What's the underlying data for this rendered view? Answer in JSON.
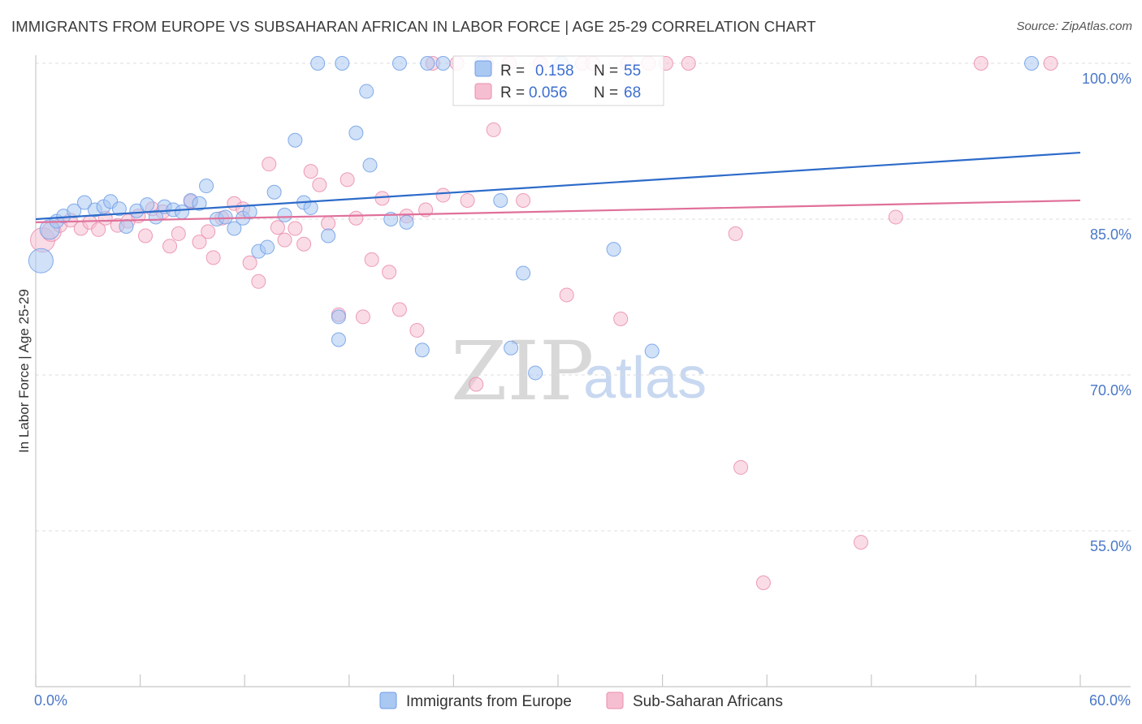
{
  "title": "IMMIGRANTS FROM EUROPE VS SUBSAHARAN AFRICAN IN LABOR FORCE | AGE 25-29 CORRELATION CHART",
  "source": "Source: ZipAtlas.com",
  "watermark": {
    "zip": "ZIP",
    "atlas": "atlas"
  },
  "chart_data": {
    "type": "scatter",
    "title": "IMMIGRANTS FROM EUROPE VS SUBSAHARAN AFRICAN IN LABOR FORCE | AGE 25-29 CORRELATION CHART",
    "xlabel": "",
    "ylabel": "In Labor Force | Age 25-29",
    "xlim": [
      0,
      60
    ],
    "ylim": [
      40,
      102
    ],
    "x_tick_labels": [
      "0.0%",
      "60.0%"
    ],
    "y_ticks": [
      55,
      70,
      85,
      100
    ],
    "y_tick_labels": [
      "55.0%",
      "70.0%",
      "85.0%",
      "100.0%"
    ],
    "grid": true,
    "legend": {
      "placement": "top-center",
      "entries": [
        {
          "name": "Immigrants from Europe",
          "r_label": "R =",
          "r": "0.158",
          "n_label": "N =",
          "n": "55",
          "color": "#6f9ee6",
          "fill": "#a9c8f2"
        },
        {
          "name": "Sub-Saharan Africans",
          "r_label": "R =",
          "r": "0.056",
          "n_label": "N =",
          "n": "68",
          "color": "#ea8cab",
          "fill": "#f6bfd1"
        }
      ]
    },
    "series": [
      {
        "name": "Immigrants from Europe",
        "color": "#6f9ee6",
        "fill": "#a9c8f2",
        "trend": {
          "x": [
            0,
            60
          ],
          "y": [
            85.0,
            91.4
          ],
          "color": "#2d6bc9"
        },
        "points": [
          {
            "x": 0.3,
            "y": 81.0,
            "s": 3
          },
          {
            "x": 0.8,
            "y": 84.0,
            "s": 2
          },
          {
            "x": 1.2,
            "y": 84.8,
            "s": 1
          },
          {
            "x": 1.6,
            "y": 85.3,
            "s": 1
          },
          {
            "x": 2.2,
            "y": 85.8,
            "s": 1
          },
          {
            "x": 2.8,
            "y": 86.6,
            "s": 1
          },
          {
            "x": 3.4,
            "y": 85.9,
            "s": 1
          },
          {
            "x": 3.9,
            "y": 86.2,
            "s": 1
          },
          {
            "x": 4.3,
            "y": 86.7,
            "s": 1
          },
          {
            "x": 4.8,
            "y": 86.0,
            "s": 1
          },
          {
            "x": 5.2,
            "y": 84.3,
            "s": 1
          },
          {
            "x": 5.8,
            "y": 85.8,
            "s": 1
          },
          {
            "x": 6.4,
            "y": 86.4,
            "s": 1
          },
          {
            "x": 6.9,
            "y": 85.2,
            "s": 1
          },
          {
            "x": 7.4,
            "y": 86.2,
            "s": 1
          },
          {
            "x": 7.9,
            "y": 85.9,
            "s": 1
          },
          {
            "x": 8.4,
            "y": 85.7,
            "s": 1
          },
          {
            "x": 8.9,
            "y": 86.8,
            "s": 1
          },
          {
            "x": 9.4,
            "y": 86.5,
            "s": 1
          },
          {
            "x": 9.8,
            "y": 88.2,
            "s": 1
          },
          {
            "x": 10.4,
            "y": 85.0,
            "s": 1
          },
          {
            "x": 10.9,
            "y": 85.2,
            "s": 1
          },
          {
            "x": 11.4,
            "y": 84.1,
            "s": 1
          },
          {
            "x": 11.9,
            "y": 85.1,
            "s": 1
          },
          {
            "x": 12.3,
            "y": 85.7,
            "s": 1
          },
          {
            "x": 12.8,
            "y": 81.9,
            "s": 1
          },
          {
            "x": 13.3,
            "y": 82.3,
            "s": 1
          },
          {
            "x": 13.7,
            "y": 87.6,
            "s": 1
          },
          {
            "x": 14.3,
            "y": 85.4,
            "s": 1
          },
          {
            "x": 14.9,
            "y": 92.6,
            "s": 1
          },
          {
            "x": 15.4,
            "y": 86.6,
            "s": 1
          },
          {
            "x": 15.8,
            "y": 86.1,
            "s": 1
          },
          {
            "x": 16.8,
            "y": 83.4,
            "s": 1
          },
          {
            "x": 16.2,
            "y": 100.0,
            "s": 1
          },
          {
            "x": 17.4,
            "y": 75.6,
            "s": 1
          },
          {
            "x": 17.4,
            "y": 73.4,
            "s": 1
          },
          {
            "x": 17.6,
            "y": 100.0,
            "s": 1
          },
          {
            "x": 18.4,
            "y": 93.3,
            "s": 1
          },
          {
            "x": 19.0,
            "y": 97.3,
            "s": 1
          },
          {
            "x": 19.2,
            "y": 90.2,
            "s": 1
          },
          {
            "x": 20.4,
            "y": 85.0,
            "s": 1
          },
          {
            "x": 20.9,
            "y": 100.0,
            "s": 1
          },
          {
            "x": 21.3,
            "y": 84.7,
            "s": 1
          },
          {
            "x": 22.2,
            "y": 72.4,
            "s": 1
          },
          {
            "x": 22.5,
            "y": 100.0,
            "s": 1
          },
          {
            "x": 23.4,
            "y": 100.0,
            "s": 1
          },
          {
            "x": 25.6,
            "y": 100.0,
            "s": 1
          },
          {
            "x": 26.7,
            "y": 86.8,
            "s": 1
          },
          {
            "x": 27.3,
            "y": 72.6,
            "s": 1
          },
          {
            "x": 28.0,
            "y": 79.8,
            "s": 1
          },
          {
            "x": 28.7,
            "y": 70.2,
            "s": 1
          },
          {
            "x": 30.2,
            "y": 100.0,
            "s": 1
          },
          {
            "x": 33.2,
            "y": 82.1,
            "s": 1
          },
          {
            "x": 35.4,
            "y": 72.3,
            "s": 1
          },
          {
            "x": 57.2,
            "y": 100.0,
            "s": 1
          }
        ]
      },
      {
        "name": "Sub-Saharan Africans",
        "color": "#ea8cab",
        "fill": "#f6bfd1",
        "trend": {
          "x": [
            0,
            60
          ],
          "y": [
            84.7,
            86.8
          ],
          "color": "#e0709a"
        },
        "points": [
          {
            "x": 0.4,
            "y": 83.0,
            "s": 3
          },
          {
            "x": 0.9,
            "y": 83.8,
            "s": 2
          },
          {
            "x": 1.4,
            "y": 84.4,
            "s": 1
          },
          {
            "x": 2.0,
            "y": 84.9,
            "s": 1
          },
          {
            "x": 2.6,
            "y": 84.1,
            "s": 1
          },
          {
            "x": 3.1,
            "y": 84.7,
            "s": 1
          },
          {
            "x": 3.6,
            "y": 84.0,
            "s": 1
          },
          {
            "x": 4.0,
            "y": 85.1,
            "s": 1
          },
          {
            "x": 4.7,
            "y": 84.4,
            "s": 1
          },
          {
            "x": 5.3,
            "y": 84.8,
            "s": 1
          },
          {
            "x": 5.9,
            "y": 85.3,
            "s": 1
          },
          {
            "x": 6.3,
            "y": 83.4,
            "s": 1
          },
          {
            "x": 6.7,
            "y": 86.0,
            "s": 1
          },
          {
            "x": 7.3,
            "y": 85.7,
            "s": 1
          },
          {
            "x": 7.7,
            "y": 82.4,
            "s": 1
          },
          {
            "x": 8.2,
            "y": 83.6,
            "s": 1
          },
          {
            "x": 8.9,
            "y": 86.7,
            "s": 1
          },
          {
            "x": 9.4,
            "y": 82.8,
            "s": 1
          },
          {
            "x": 9.9,
            "y": 83.8,
            "s": 1
          },
          {
            "x": 10.2,
            "y": 81.3,
            "s": 1
          },
          {
            "x": 10.7,
            "y": 85.1,
            "s": 1
          },
          {
            "x": 11.4,
            "y": 86.5,
            "s": 1
          },
          {
            "x": 11.9,
            "y": 86.0,
            "s": 1
          },
          {
            "x": 12.3,
            "y": 80.8,
            "s": 1
          },
          {
            "x": 12.8,
            "y": 79.0,
            "s": 1
          },
          {
            "x": 13.4,
            "y": 90.3,
            "s": 1
          },
          {
            "x": 13.9,
            "y": 84.2,
            "s": 1
          },
          {
            "x": 14.3,
            "y": 83.0,
            "s": 1
          },
          {
            "x": 14.9,
            "y": 84.1,
            "s": 1
          },
          {
            "x": 15.4,
            "y": 82.6,
            "s": 1
          },
          {
            "x": 15.8,
            "y": 89.6,
            "s": 1
          },
          {
            "x": 16.3,
            "y": 88.3,
            "s": 1
          },
          {
            "x": 16.8,
            "y": 84.6,
            "s": 1
          },
          {
            "x": 17.4,
            "y": 75.8,
            "s": 1
          },
          {
            "x": 17.9,
            "y": 88.8,
            "s": 1
          },
          {
            "x": 18.4,
            "y": 85.1,
            "s": 1
          },
          {
            "x": 18.8,
            "y": 75.6,
            "s": 1
          },
          {
            "x": 19.3,
            "y": 81.1,
            "s": 1
          },
          {
            "x": 19.9,
            "y": 87.0,
            "s": 1
          },
          {
            "x": 20.3,
            "y": 79.9,
            "s": 1
          },
          {
            "x": 20.9,
            "y": 76.3,
            "s": 1
          },
          {
            "x": 21.3,
            "y": 85.3,
            "s": 1
          },
          {
            "x": 21.9,
            "y": 74.3,
            "s": 1
          },
          {
            "x": 22.4,
            "y": 85.9,
            "s": 1
          },
          {
            "x": 22.8,
            "y": 100.0,
            "s": 1
          },
          {
            "x": 23.4,
            "y": 87.3,
            "s": 1
          },
          {
            "x": 24.2,
            "y": 100.0,
            "s": 1
          },
          {
            "x": 24.8,
            "y": 86.8,
            "s": 1
          },
          {
            "x": 25.3,
            "y": 69.1,
            "s": 1
          },
          {
            "x": 25.9,
            "y": 100.0,
            "s": 1
          },
          {
            "x": 26.3,
            "y": 93.6,
            "s": 1
          },
          {
            "x": 27.2,
            "y": 100.0,
            "s": 1
          },
          {
            "x": 28.0,
            "y": 86.8,
            "s": 1
          },
          {
            "x": 29.0,
            "y": 100.0,
            "s": 1
          },
          {
            "x": 30.5,
            "y": 77.7,
            "s": 1
          },
          {
            "x": 31.4,
            "y": 100.0,
            "s": 1
          },
          {
            "x": 32.0,
            "y": 100.0,
            "s": 1
          },
          {
            "x": 33.6,
            "y": 75.4,
            "s": 1
          },
          {
            "x": 34.0,
            "y": 100.0,
            "s": 1
          },
          {
            "x": 35.2,
            "y": 100.0,
            "s": 1
          },
          {
            "x": 36.2,
            "y": 100.0,
            "s": 1
          },
          {
            "x": 37.5,
            "y": 100.0,
            "s": 1
          },
          {
            "x": 40.2,
            "y": 83.6,
            "s": 1
          },
          {
            "x": 40.5,
            "y": 61.1,
            "s": 1
          },
          {
            "x": 41.8,
            "y": 50.0,
            "s": 1
          },
          {
            "x": 47.4,
            "y": 53.9,
            "s": 1
          },
          {
            "x": 49.4,
            "y": 85.2,
            "s": 1
          },
          {
            "x": 54.3,
            "y": 100.0,
            "s": 1
          },
          {
            "x": 58.3,
            "y": 100.0,
            "s": 1
          }
        ]
      }
    ]
  }
}
